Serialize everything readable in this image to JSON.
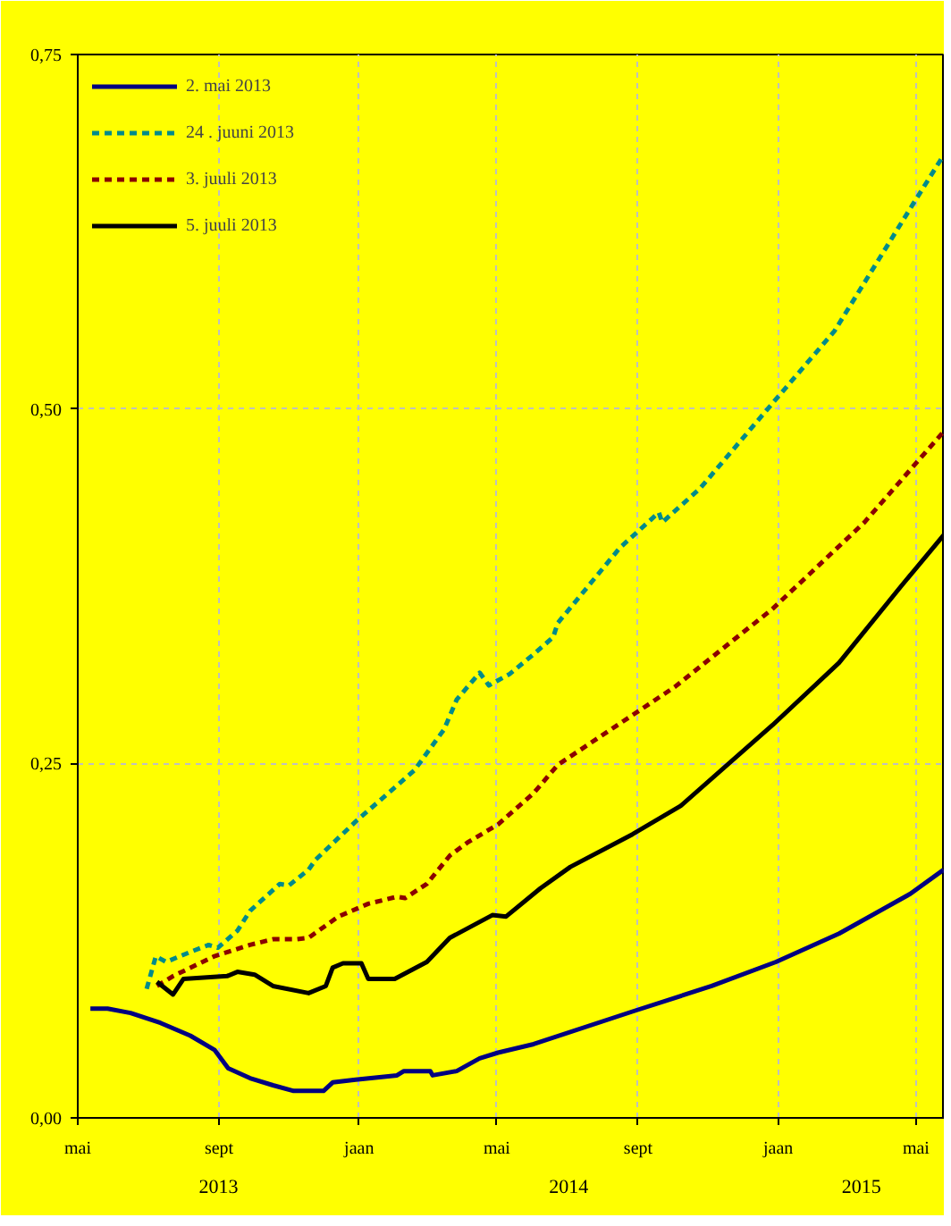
{
  "chart_data": {
    "type": "line",
    "xlim": [
      "2013-05-01",
      "2015-05-26"
    ],
    "ylim": [
      0,
      0.75
    ],
    "xticks": [
      {
        "value": "2013-05-01",
        "label": "mai"
      },
      {
        "value": "2013-09-01",
        "label": "sept"
      },
      {
        "value": "2014-01-01",
        "label": "jaan"
      },
      {
        "value": "2014-05-01",
        "label": "mai"
      },
      {
        "value": "2014-09-01",
        "label": "sept"
      },
      {
        "value": "2015-01-01",
        "label": "jaan"
      },
      {
        "value": "2015-05-01",
        "label": "mai"
      }
    ],
    "yticks": [
      {
        "value": 0,
        "label": "0,00"
      },
      {
        "value": 0.25,
        "label": "0,25"
      },
      {
        "value": 0.5,
        "label": "0,50"
      },
      {
        "value": 0.75,
        "label": "0,75"
      }
    ],
    "grid": true,
    "legend": "top left",
    "annotations": [
      "2013",
      "2014",
      "2015"
    ],
    "series": [
      {
        "name": "2. mai 2013",
        "color": "#000080",
        "line_style": "solid",
        "x": [
          "2013-05-12",
          "2013-05-27",
          "2013-06-16",
          "2013-07-12",
          "2013-08-07",
          "2013-08-28",
          "2013-09-09",
          "2013-09-28",
          "2013-10-18",
          "2013-11-05",
          "2013-12-01",
          "2013-12-09",
          "2013-12-29",
          "2014-02-03",
          "2014-02-09",
          "2014-03-04",
          "2014-03-06",
          "2014-03-27",
          "2014-04-16",
          "2014-05-02",
          "2014-06-02",
          "2014-08-27",
          "2014-11-04",
          "2014-12-30",
          "2015-02-23",
          "2015-04-26",
          "2015-05-25"
        ],
        "values": [
          0.077,
          0.077,
          0.074,
          0.067,
          0.058,
          0.048,
          0.035,
          0.028,
          0.023,
          0.019,
          0.019,
          0.025,
          0.027,
          0.03,
          0.033,
          0.033,
          0.03,
          0.033,
          0.042,
          0.046,
          0.052,
          0.075,
          0.093,
          0.11,
          0.13,
          0.158,
          0.175
        ]
      },
      {
        "name": "24 . juuni 2013",
        "color": "#008b8b",
        "line_style": "dashed",
        "x": [
          "2013-06-30",
          "2013-07-08",
          "2013-07-17",
          "2013-08-07",
          "2013-08-23",
          "2013-08-31",
          "2013-09-17",
          "2013-09-28",
          "2013-10-24",
          "2013-11-01",
          "2013-11-18",
          "2013-11-24",
          "2013-12-29",
          "2014-02-18",
          "2014-03-16",
          "2014-03-27",
          "2014-04-16",
          "2014-04-24",
          "2014-05-12",
          "2014-06-02",
          "2014-06-19",
          "2014-06-23",
          "2014-08-16",
          "2014-09-19",
          "2014-09-22",
          "2014-10-25",
          "2014-12-27",
          "2015-02-19",
          "2015-04-28",
          "2015-05-25"
        ],
        "values": [
          0.091,
          0.114,
          0.11,
          0.117,
          0.122,
          0.12,
          0.132,
          0.146,
          0.165,
          0.164,
          0.175,
          0.182,
          0.209,
          0.245,
          0.274,
          0.295,
          0.314,
          0.305,
          0.313,
          0.327,
          0.339,
          0.349,
          0.402,
          0.427,
          0.42,
          0.444,
          0.504,
          0.555,
          0.644,
          0.679
        ]
      },
      {
        "name": "3. juuli 2013",
        "color": "#8b0000",
        "line_style": "dashed",
        "x": [
          "2013-07-09",
          "2013-07-23",
          "2013-08-28",
          "2013-09-28",
          "2013-10-18",
          "2013-11-08",
          "2013-11-18",
          "2013-12-14",
          "2014-01-09",
          "2014-02-03",
          "2014-02-10",
          "2014-03-01",
          "2014-03-21",
          "2014-04-05",
          "2014-05-02",
          "2014-06-02",
          "2014-06-23",
          "2014-10-03",
          "2014-12-27",
          "2015-03-17",
          "2015-05-25"
        ],
        "values": [
          0.093,
          0.1,
          0.114,
          0.122,
          0.126,
          0.126,
          0.127,
          0.142,
          0.151,
          0.156,
          0.155,
          0.165,
          0.185,
          0.194,
          0.207,
          0.229,
          0.249,
          0.304,
          0.359,
          0.42,
          0.484
        ]
      },
      {
        "name": "5. juuli 2013",
        "color": "#000000",
        "line_style": "solid",
        "x": [
          "2013-07-09",
          "2013-07-23",
          "2013-08-01",
          "2013-09-08",
          "2013-09-17",
          "2013-10-02",
          "2013-10-18",
          "2013-11-18",
          "2013-12-03",
          "2013-12-09",
          "2013-12-18",
          "2014-01-03",
          "2014-01-09",
          "2014-02-01",
          "2014-03-01",
          "2014-03-21",
          "2014-04-27",
          "2014-05-09",
          "2014-06-08",
          "2014-07-04",
          "2014-08-27",
          "2014-10-08",
          "2014-12-27",
          "2015-02-23",
          "2015-04-18",
          "2015-05-25"
        ],
        "values": [
          0.096,
          0.087,
          0.098,
          0.1,
          0.103,
          0.101,
          0.093,
          0.088,
          0.093,
          0.106,
          0.109,
          0.109,
          0.098,
          0.098,
          0.11,
          0.127,
          0.143,
          0.142,
          0.162,
          0.177,
          0.2,
          0.22,
          0.277,
          0.321,
          0.375,
          0.411
        ]
      }
    ]
  }
}
